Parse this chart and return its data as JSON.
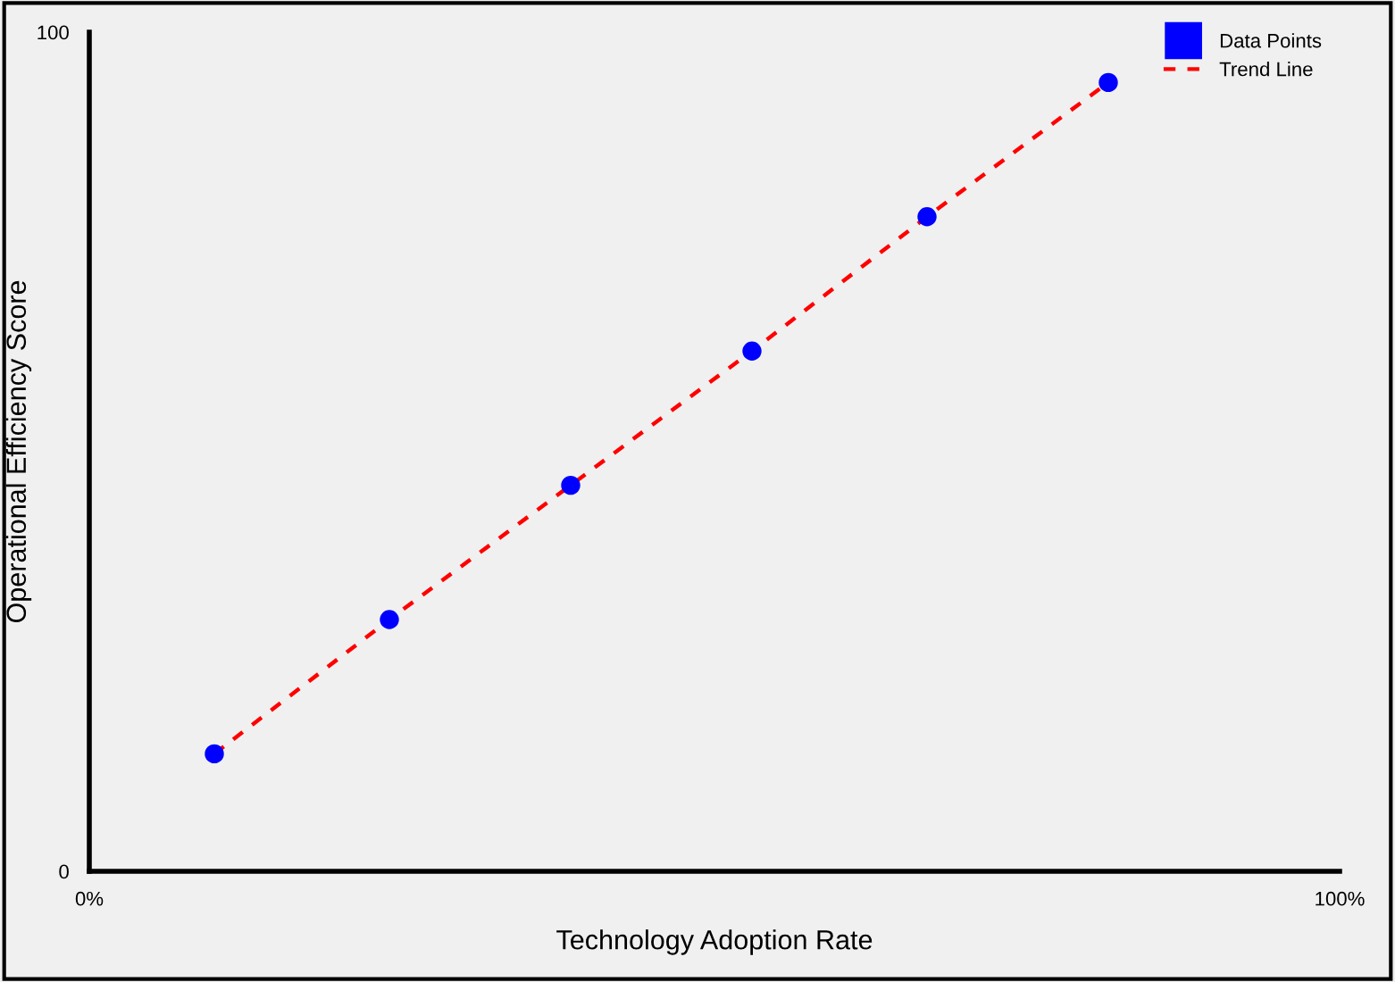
{
  "chart_data": {
    "type": "scatter",
    "xlabel": "Technology Adoption Rate",
    "ylabel": "Operational Efficiency Score",
    "x": [
      10,
      24,
      38.5,
      53,
      67,
      81.5
    ],
    "series": [
      {
        "name": "Data Points",
        "color": "#0000ff",
        "marker": "circle",
        "values": [
          14,
          30,
          46,
          62,
          78,
          94
        ]
      },
      {
        "name": "Trend Line",
        "type": "line",
        "color": "#ff0000",
        "line_style": "dashed",
        "values": [
          14,
          30,
          46,
          62,
          78,
          94
        ]
      }
    ],
    "xlim": [
      0,
      100
    ],
    "ylim": [
      0,
      100
    ],
    "xticks": [
      {
        "value": 0,
        "label": "0%"
      },
      {
        "value": 100,
        "label": "100%"
      }
    ],
    "yticks": [
      0,
      100
    ],
    "grid": false,
    "legend": "top right"
  }
}
